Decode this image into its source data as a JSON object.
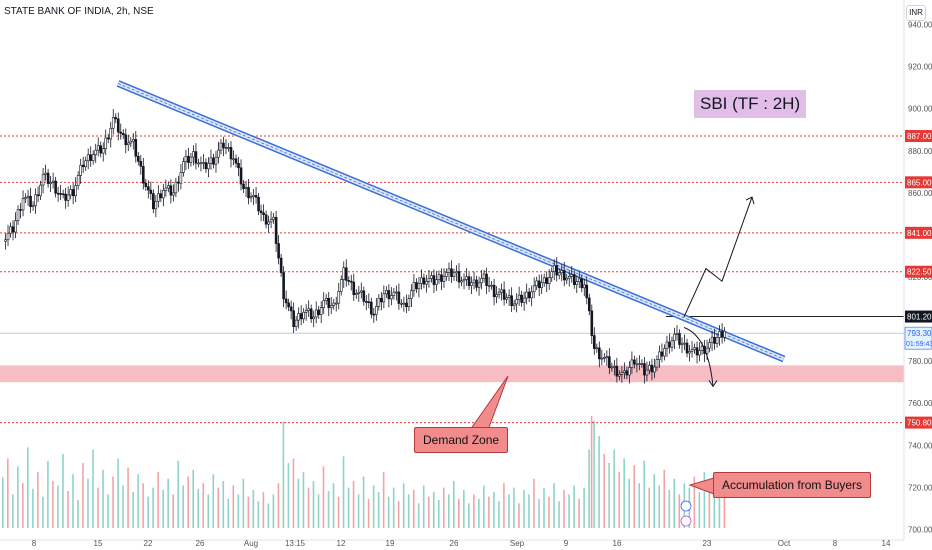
{
  "header": {
    "symbol": "STATE BANK OF INDIA, 2h, NSE",
    "currency": "INR"
  },
  "annotations": {
    "title_box": "SBI (TF : 2H)",
    "demand_zone": "Demand Zone",
    "accumulation": "Accumulation from Buyers"
  },
  "chart_data": {
    "type": "candlestick",
    "ylim": [
      695,
      945
    ],
    "y_ticks": [
      700,
      720,
      740,
      760,
      780,
      800,
      820,
      840,
      860,
      880,
      900,
      920,
      940
    ],
    "x_tick_labels": [
      "8",
      "15",
      "22",
      "26",
      "Aug",
      "13:15",
      "12",
      "19",
      "26",
      "Sep",
      "9",
      "16",
      "23",
      "Oct",
      "8",
      "14"
    ],
    "price_levels": [
      {
        "value": 887.0,
        "label": "887.00"
      },
      {
        "value": 865.0,
        "label": "865.00"
      },
      {
        "value": 841.0,
        "label": "841.00"
      },
      {
        "value": 822.5,
        "label": "822.50"
      },
      {
        "value": 750.8,
        "label": "750.80"
      }
    ],
    "resistance_level": {
      "value": 801.2,
      "label": "801.20"
    },
    "current_price": {
      "value": 793.3,
      "label": "793.30",
      "countdown": "01:59:43"
    },
    "demand_zone": [
      770,
      778
    ],
    "trendline": {
      "from_price": 912,
      "to_price": 781
    },
    "price_path": [
      [
        0,
        837
      ],
      [
        4,
        843
      ],
      [
        8,
        858
      ],
      [
        12,
        854
      ],
      [
        16,
        868
      ],
      [
        20,
        864
      ],
      [
        24,
        857
      ],
      [
        28,
        861
      ],
      [
        32,
        874
      ],
      [
        36,
        879
      ],
      [
        40,
        881
      ],
      [
        44,
        895
      ],
      [
        48,
        886
      ],
      [
        52,
        883
      ],
      [
        56,
        867
      ],
      [
        60,
        854
      ],
      [
        64,
        862
      ],
      [
        68,
        860
      ],
      [
        72,
        874
      ],
      [
        76,
        878
      ],
      [
        80,
        872
      ],
      [
        84,
        876
      ],
      [
        88,
        883
      ],
      [
        92,
        877
      ],
      [
        96,
        862
      ],
      [
        100,
        858
      ],
      [
        104,
        848
      ],
      [
        108,
        846
      ],
      [
        112,
        812
      ],
      [
        116,
        798
      ],
      [
        120,
        804
      ],
      [
        124,
        801
      ],
      [
        128,
        808
      ],
      [
        132,
        806
      ],
      [
        136,
        822
      ],
      [
        140,
        814
      ],
      [
        144,
        810
      ],
      [
        148,
        803
      ],
      [
        152,
        812
      ],
      [
        156,
        812
      ],
      [
        160,
        806
      ],
      [
        164,
        815
      ],
      [
        168,
        819
      ],
      [
        172,
        818
      ],
      [
        176,
        821
      ],
      [
        180,
        822
      ],
      [
        184,
        818
      ],
      [
        188,
        817
      ],
      [
        192,
        819
      ],
      [
        196,
        813
      ],
      [
        200,
        811
      ],
      [
        204,
        808
      ],
      [
        208,
        810
      ],
      [
        212,
        815
      ],
      [
        216,
        818
      ],
      [
        220,
        823
      ],
      [
        224,
        821
      ],
      [
        228,
        818
      ],
      [
        232,
        817
      ],
      [
        236,
        786
      ],
      [
        240,
        781
      ],
      [
        244,
        776
      ],
      [
        248,
        773
      ],
      [
        252,
        781
      ],
      [
        256,
        775
      ],
      [
        260,
        778
      ],
      [
        264,
        786
      ],
      [
        268,
        792
      ],
      [
        272,
        787
      ],
      [
        276,
        784
      ],
      [
        280,
        786
      ],
      [
        284,
        790
      ],
      [
        288,
        795
      ]
    ],
    "projection_main": [
      801,
      824,
      818,
      858
    ],
    "projection_alt": [
      796,
      768
    ],
    "volume": [
      [
        0,
        0.45
      ],
      [
        2,
        0.62
      ],
      [
        4,
        0.3
      ],
      [
        6,
        0.55
      ],
      [
        8,
        0.4
      ],
      [
        10,
        0.72
      ],
      [
        12,
        0.35
      ],
      [
        14,
        0.5
      ],
      [
        16,
        0.28
      ],
      [
        18,
        0.6
      ],
      [
        20,
        0.42
      ],
      [
        22,
        0.38
      ],
      [
        24,
        0.66
      ],
      [
        26,
        0.33
      ],
      [
        28,
        0.48
      ],
      [
        30,
        0.25
      ],
      [
        32,
        0.58
      ],
      [
        34,
        0.44
      ],
      [
        36,
        0.7
      ],
      [
        38,
        0.36
      ],
      [
        40,
        0.52
      ],
      [
        42,
        0.3
      ],
      [
        44,
        0.46
      ],
      [
        46,
        0.62
      ],
      [
        48,
        0.38
      ],
      [
        50,
        0.54
      ],
      [
        52,
        0.32
      ],
      [
        54,
        0.48
      ],
      [
        56,
        0.4
      ],
      [
        58,
        0.28
      ],
      [
        60,
        0.36
      ],
      [
        62,
        0.5
      ],
      [
        64,
        0.34
      ],
      [
        66,
        0.44
      ],
      [
        68,
        0.3
      ],
      [
        70,
        0.6
      ],
      [
        72,
        0.38
      ],
      [
        74,
        0.46
      ],
      [
        76,
        0.52
      ],
      [
        78,
        0.35
      ],
      [
        80,
        0.4
      ],
      [
        82,
        0.3
      ],
      [
        84,
        0.48
      ],
      [
        86,
        0.36
      ],
      [
        88,
        0.42
      ],
      [
        90,
        0.26
      ],
      [
        92,
        0.38
      ],
      [
        94,
        0.3
      ],
      [
        96,
        0.44
      ],
      [
        98,
        0.28
      ],
      [
        100,
        0.34
      ],
      [
        102,
        0.24
      ],
      [
        104,
        0.32
      ],
      [
        106,
        0.22
      ],
      [
        108,
        0.3
      ],
      [
        110,
        0.4
      ],
      [
        112,
        0.95
      ],
      [
        114,
        0.58
      ],
      [
        116,
        0.62
      ],
      [
        118,
        0.44
      ],
      [
        120,
        0.5
      ],
      [
        122,
        0.36
      ],
      [
        124,
        0.42
      ],
      [
        126,
        0.3
      ],
      [
        128,
        0.55
      ],
      [
        130,
        0.33
      ],
      [
        132,
        0.4
      ],
      [
        134,
        0.28
      ],
      [
        136,
        0.64
      ],
      [
        138,
        0.36
      ],
      [
        140,
        0.42
      ],
      [
        142,
        0.3
      ],
      [
        144,
        0.46
      ],
      [
        146,
        0.26
      ],
      [
        148,
        0.38
      ],
      [
        150,
        0.32
      ],
      [
        152,
        0.5
      ],
      [
        154,
        0.28
      ],
      [
        156,
        0.36
      ],
      [
        158,
        0.24
      ],
      [
        160,
        0.4
      ],
      [
        162,
        0.3
      ],
      [
        164,
        0.34
      ],
      [
        166,
        0.22
      ],
      [
        168,
        0.38
      ],
      [
        170,
        0.28
      ],
      [
        172,
        0.32
      ],
      [
        174,
        0.25
      ],
      [
        176,
        0.36
      ],
      [
        178,
        0.3
      ],
      [
        180,
        0.42
      ],
      [
        182,
        0.26
      ],
      [
        184,
        0.34
      ],
      [
        186,
        0.22
      ],
      [
        188,
        0.3
      ],
      [
        190,
        0.26
      ],
      [
        192,
        0.38
      ],
      [
        194,
        0.28
      ],
      [
        196,
        0.32
      ],
      [
        198,
        0.24
      ],
      [
        200,
        0.4
      ],
      [
        202,
        0.3
      ],
      [
        204,
        0.36
      ],
      [
        206,
        0.22
      ],
      [
        208,
        0.34
      ],
      [
        210,
        0.3
      ],
      [
        212,
        0.44
      ],
      [
        214,
        0.26
      ],
      [
        216,
        0.36
      ],
      [
        218,
        0.28
      ],
      [
        220,
        0.4
      ],
      [
        222,
        0.24
      ],
      [
        224,
        0.34
      ],
      [
        226,
        0.3
      ],
      [
        228,
        0.38
      ],
      [
        230,
        0.26
      ],
      [
        232,
        0.36
      ],
      [
        234,
        0.7
      ],
      [
        235,
        1.0
      ],
      [
        236,
        0.96
      ],
      [
        238,
        0.82
      ],
      [
        240,
        0.66
      ],
      [
        242,
        0.58
      ],
      [
        244,
        0.7
      ],
      [
        246,
        0.5
      ],
      [
        248,
        0.62
      ],
      [
        250,
        0.44
      ],
      [
        252,
        0.56
      ],
      [
        254,
        0.4
      ],
      [
        256,
        0.6
      ],
      [
        258,
        0.36
      ],
      [
        260,
        0.48
      ],
      [
        262,
        0.38
      ],
      [
        264,
        0.52
      ],
      [
        266,
        0.34
      ],
      [
        268,
        0.44
      ],
      [
        270,
        0.3
      ],
      [
        272,
        0.4
      ],
      [
        274,
        0.36
      ],
      [
        276,
        0.46
      ],
      [
        278,
        0.32
      ],
      [
        280,
        0.5
      ],
      [
        282,
        0.38
      ],
      [
        284,
        0.44
      ],
      [
        286,
        0.3
      ],
      [
        288,
        0.34
      ]
    ]
  }
}
